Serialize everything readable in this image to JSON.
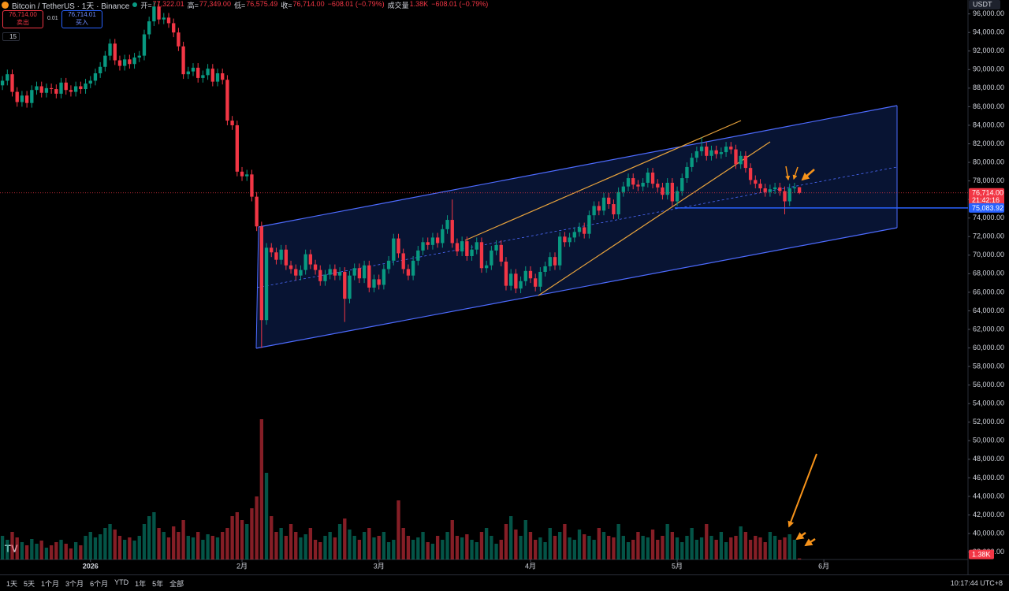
{
  "header": {
    "symbol": "Bitcoin / TetherUS · 1天 · Binance",
    "stats": [
      {
        "label": "开=",
        "value": "77,322.01"
      },
      {
        "label": "高=",
        "value": "77,349.00"
      },
      {
        "label": "低=",
        "value": "76,575.49"
      },
      {
        "label": "收=",
        "value": "76,714.00"
      },
      {
        "label": "",
        "value": "−608.01 (−0.79%)"
      },
      {
        "label": "成交量",
        "value": "1.38K"
      },
      {
        "label": "",
        "value": "−608.01 (−0.79%)"
      }
    ],
    "sell": {
      "price": "76,714.00",
      "label": "卖出"
    },
    "spread": "0.01",
    "buy": {
      "price": "76,714.01",
      "label": "买入"
    },
    "interval_badge": "15"
  },
  "currency": "USDT",
  "toolbar": {
    "ranges": [
      "1天",
      "5天",
      "1个月",
      "3个月",
      "6个月",
      "YTD",
      "1年",
      "5年",
      "全部"
    ],
    "clock": "10:17:44 UTC+8"
  },
  "chart_data": {
    "type": "candlestick",
    "up_color": "#089981",
    "down_color": "#f23645",
    "open": [
      88300,
      88800,
      89500,
      87600,
      86500,
      87200,
      86400,
      87800,
      88200,
      87500,
      88000,
      87900,
      87400,
      88600,
      87800,
      87600,
      88200,
      87900,
      88500,
      88800,
      89600,
      90300,
      91500,
      92800,
      91000,
      90400,
      91100,
      90600,
      91300,
      91500,
      93800,
      95200,
      96800,
      95400,
      95600,
      95000,
      94000,
      92500,
      89500,
      89800,
      90200,
      89100,
      89400,
      90100,
      88700,
      89600,
      88900,
      84500,
      84000,
      79000,
      78500,
      78700,
      76300,
      73100,
      63000,
      70800,
      70300,
      69500,
      70600,
      68900,
      68500,
      67800,
      68400,
      70100,
      69000,
      68400,
      67200,
      67900,
      68500,
      67800,
      68200,
      65300,
      67800,
      68600,
      67500,
      68900,
      66500,
      67400,
      66800,
      68500,
      69400,
      71800,
      70200,
      68500,
      67800,
      69400,
      70500,
      71400,
      71100,
      71900,
      71300,
      72800,
      73800,
      71300,
      70400,
      71500,
      69900,
      70600,
      71400,
      68600,
      68900,
      70500,
      71100,
      69300,
      66700,
      68000,
      66400,
      67200,
      68300,
      67500,
      66600,
      68200,
      68800,
      69800,
      68900,
      72000,
      71400,
      71900,
      72500,
      73000,
      72300,
      74300,
      75300,
      74800,
      76200,
      75500,
      74400,
      76800,
      77400,
      78300,
      77600,
      77400,
      77800,
      78900,
      77700,
      77300,
      76500,
      77800,
      75800,
      76900,
      78300,
      79500,
      80500,
      81200,
      81700,
      80700,
      81300,
      80900,
      81100,
      81700,
      81400,
      79800,
      80700,
      79400,
      78100,
      77700,
      77200,
      76800,
      77100,
      77300,
      76900,
      75800,
      77200,
      77322.01
    ],
    "high": [
      89300,
      90000,
      90000,
      88100,
      87700,
      87700,
      88300,
      88700,
      88700,
      88500,
      88500,
      88400,
      89100,
      89100,
      88300,
      88700,
      88700,
      89000,
      89300,
      90100,
      90800,
      92000,
      93300,
      93300,
      91500,
      91600,
      91600,
      91800,
      92000,
      94300,
      95700,
      97300,
      97300,
      96100,
      96100,
      95500,
      94500,
      93000,
      90300,
      90700,
      90700,
      89900,
      90600,
      90600,
      90100,
      90100,
      89400,
      85000,
      84500,
      79500,
      79200,
      79200,
      76800,
      73600,
      71300,
      71300,
      70800,
      71100,
      71100,
      69400,
      69000,
      68900,
      70600,
      70600,
      69500,
      68900,
      68400,
      69000,
      69000,
      68700,
      68700,
      68300,
      69100,
      69100,
      69400,
      69400,
      67900,
      67900,
      69000,
      69900,
      72300,
      72300,
      70700,
      69000,
      69900,
      71000,
      71900,
      71900,
      72400,
      72400,
      73300,
      74300,
      76000,
      71800,
      72000,
      72000,
      71100,
      71900,
      71900,
      69400,
      71000,
      71600,
      71600,
      69800,
      68500,
      68500,
      67700,
      68800,
      68800,
      68000,
      68700,
      69300,
      70300,
      70300,
      72500,
      72500,
      72400,
      73000,
      73500,
      73500,
      74800,
      75800,
      75800,
      76700,
      76700,
      76000,
      77300,
      77900,
      78800,
      78800,
      78100,
      78300,
      79400,
      79400,
      78200,
      77800,
      78300,
      78300,
      77400,
      78800,
      80000,
      81000,
      81700,
      82700,
      82200,
      81800,
      81800,
      81600,
      82200,
      82200,
      81900,
      81200,
      81200,
      79900,
      78600,
      78200,
      77700,
      77600,
      77800,
      77800,
      77400,
      77700,
      77800,
      77349
    ],
    "low": [
      87800,
      88300,
      87100,
      86000,
      86000,
      85900,
      85900,
      87300,
      87000,
      87000,
      87400,
      86900,
      86900,
      87300,
      87100,
      87100,
      87400,
      87400,
      88000,
      88300,
      89100,
      89800,
      91000,
      90500,
      89900,
      89900,
      90100,
      90100,
      90800,
      91000,
      93300,
      94700,
      94900,
      94900,
      94500,
      93500,
      92000,
      89000,
      89000,
      89300,
      88600,
      88600,
      88900,
      88200,
      88200,
      88400,
      84000,
      83500,
      78500,
      78000,
      78000,
      75800,
      72600,
      60000,
      62500,
      69800,
      69000,
      69000,
      68400,
      68000,
      67300,
      67300,
      67900,
      68500,
      67900,
      66700,
      66700,
      67400,
      67300,
      67300,
      62800,
      64800,
      67300,
      67000,
      67000,
      66000,
      66000,
      66300,
      66300,
      68000,
      68900,
      69700,
      68000,
      67300,
      67300,
      68900,
      70000,
      70600,
      70600,
      70800,
      70800,
      72300,
      70800,
      69900,
      69900,
      69400,
      69400,
      70100,
      68100,
      68100,
      68400,
      70000,
      68800,
      66200,
      66200,
      65900,
      65900,
      66700,
      67000,
      66100,
      66100,
      67700,
      68300,
      68400,
      68400,
      70900,
      70900,
      71400,
      72000,
      71800,
      71800,
      73800,
      74300,
      74300,
      75000,
      73900,
      73900,
      76300,
      76900,
      77100,
      76900,
      76900,
      77300,
      77200,
      76800,
      76000,
      76000,
      75300,
      75300,
      76400,
      77800,
      79000,
      80000,
      80700,
      80200,
      80200,
      80400,
      80400,
      80600,
      80900,
      79300,
      79300,
      78900,
      77600,
      77200,
      76700,
      76300,
      76300,
      76600,
      76400,
      74400,
      75300,
      76700,
      76575.49
    ],
    "close": [
      88800,
      89500,
      87600,
      86500,
      87200,
      86400,
      87800,
      88200,
      87500,
      88000,
      87900,
      87400,
      88600,
      87800,
      87600,
      88200,
      87900,
      88500,
      88800,
      89600,
      90300,
      91500,
      92800,
      91000,
      90400,
      91100,
      90600,
      91300,
      91500,
      93800,
      95200,
      96800,
      95400,
      95600,
      95000,
      94000,
      92500,
      89500,
      89800,
      90200,
      89100,
      89400,
      90100,
      88700,
      89600,
      88900,
      84500,
      84000,
      79000,
      78500,
      78700,
      76300,
      73100,
      63000,
      70800,
      70300,
      69500,
      70600,
      68900,
      68500,
      67800,
      68400,
      70100,
      69000,
      68400,
      67200,
      67900,
      68500,
      67800,
      68200,
      65300,
      67800,
      68600,
      67500,
      68900,
      66500,
      67400,
      66800,
      68500,
      69400,
      71800,
      70200,
      68500,
      67800,
      69400,
      70500,
      71400,
      71100,
      71900,
      71300,
      72800,
      73800,
      71300,
      70400,
      71500,
      69900,
      70600,
      71400,
      68600,
      68900,
      70500,
      71100,
      69300,
      66700,
      68000,
      66400,
      67200,
      68300,
      67500,
      66600,
      68200,
      68800,
      69800,
      68900,
      72000,
      71400,
      71900,
      72500,
      73000,
      72300,
      74300,
      75300,
      74800,
      76200,
      75500,
      74400,
      76800,
      77400,
      78300,
      77600,
      77400,
      77800,
      78900,
      77700,
      77300,
      76500,
      77800,
      75800,
      76900,
      78300,
      79500,
      80500,
      81200,
      81700,
      80700,
      81300,
      80900,
      81100,
      81700,
      81400,
      79800,
      80700,
      79400,
      78100,
      77700,
      77200,
      76800,
      77100,
      77300,
      76900,
      75800,
      77200,
      77322,
      76714
    ],
    "volume": [
      30000,
      25000,
      35000,
      28000,
      22000,
      18000,
      26000,
      20000,
      24000,
      15000,
      18000,
      22000,
      25000,
      20000,
      14000,
      22000,
      18000,
      30000,
      35000,
      28000,
      32000,
      40000,
      45000,
      38000,
      30000,
      25000,
      28000,
      24000,
      30000,
      45000,
      55000,
      60000,
      40000,
      35000,
      28000,
      42000,
      35000,
      50000,
      30000,
      28000,
      35000,
      25000,
      32000,
      30000,
      28000,
      35000,
      40000,
      55000,
      60000,
      50000,
      45000,
      65000,
      80000,
      178000,
      110000,
      55000,
      35000,
      40000,
      30000,
      45000,
      35000,
      28000,
      32000,
      40000,
      25000,
      22000,
      30000,
      35000,
      28000,
      45000,
      52000,
      38000,
      30000,
      25000,
      35000,
      40000,
      28000,
      30000,
      35000,
      22000,
      25000,
      75000,
      40000,
      30000,
      25000,
      28000,
      35000,
      22000,
      20000,
      30000,
      25000,
      35000,
      50000,
      30000,
      28000,
      32000,
      25000,
      22000,
      35000,
      40000,
      30000,
      20000,
      25000,
      45000,
      55000,
      38000,
      30000,
      50000,
      35000,
      25000,
      28000,
      22000,
      40000,
      30000,
      35000,
      45000,
      28000,
      25000,
      38000,
      32000,
      30000,
      25000,
      40000,
      35000,
      30000,
      28000,
      45000,
      30000,
      22000,
      25000,
      35000,
      30000,
      28000,
      38000,
      25000,
      30000,
      45000,
      35000,
      28000,
      22000,
      30000,
      40000,
      25000,
      28000,
      45000,
      30000,
      25000,
      35000,
      22000,
      28000,
      30000,
      42000,
      35000,
      25000,
      30000,
      28000,
      22000,
      35000,
      30000,
      25000,
      28000,
      32000,
      25000,
      1380
    ],
    "volume_last_label": "1.38K",
    "last_price_label": "76,714.00",
    "countdown": "21:42:16",
    "level": {
      "value": 75083.92,
      "label": "75,083.92"
    },
    "xlim": [
      -0.5,
      197
    ],
    "xticks": [
      {
        "value": 18,
        "label": "2026"
      },
      {
        "value": 49,
        "label": "2月"
      },
      {
        "value": 77,
        "label": "3月"
      },
      {
        "value": 108,
        "label": "4月"
      },
      {
        "value": 138,
        "label": "5月"
      },
      {
        "value": 168,
        "label": "6月"
      }
    ],
    "ylim": [
      37200,
      97500
    ],
    "yticks": [
      {
        "value": 96000,
        "label": "96,000.00"
      },
      {
        "value": 94000,
        "label": "94,000.00"
      },
      {
        "value": 92000,
        "label": "92,000.00"
      },
      {
        "value": 90000,
        "label": "90,000.00"
      },
      {
        "value": 88000,
        "label": "88,000.00"
      },
      {
        "value": 86000,
        "label": "86,000.00"
      },
      {
        "value": 84000,
        "label": "84,000.00"
      },
      {
        "value": 82000,
        "label": "82,000.00"
      },
      {
        "value": 80000,
        "label": "80,000.00"
      },
      {
        "value": 78000,
        "label": "78,000.00"
      },
      {
        "value": 76000,
        "label": "76,000.00"
      },
      {
        "value": 74000,
        "label": "74,000.00"
      },
      {
        "value": 72000,
        "label": "72,000.00"
      },
      {
        "value": 70000,
        "label": "70,000.00"
      },
      {
        "value": 68000,
        "label": "68,000.00"
      },
      {
        "value": 66000,
        "label": "66,000.00"
      },
      {
        "value": 64000,
        "label": "64,000.00"
      },
      {
        "value": 62000,
        "label": "62,000.00"
      },
      {
        "value": 60000,
        "label": "60,000.00"
      },
      {
        "value": 58000,
        "label": "58,000.00"
      },
      {
        "value": 56000,
        "label": "56,000.00"
      },
      {
        "value": 54000,
        "label": "54,000.00"
      },
      {
        "value": 52000,
        "label": "52,000.00"
      },
      {
        "value": 50000,
        "label": "50,000.00"
      },
      {
        "value": 48000,
        "label": "48,000.00"
      },
      {
        "value": 46000,
        "label": "46,000.00"
      },
      {
        "value": 44000,
        "label": "44,000.00"
      },
      {
        "value": 42000,
        "label": "42,000.00"
      },
      {
        "value": 40000,
        "label": "40,000.00"
      },
      {
        "value": 38000,
        "label": "38,000.00"
      }
    ]
  }
}
